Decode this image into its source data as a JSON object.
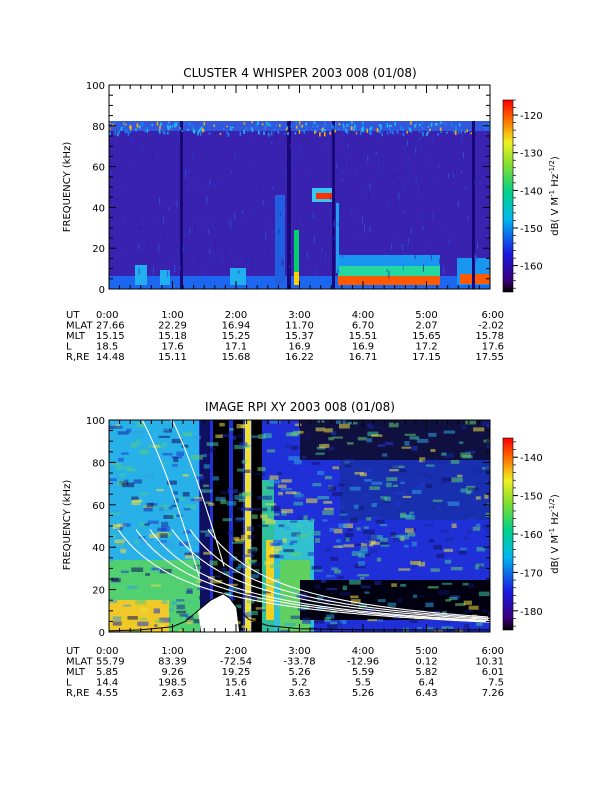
{
  "chart_data": [
    {
      "type": "heatmap",
      "title": "CLUSTER 4 WHISPER 2003 008 (01/08)",
      "ylabel": "FREQUENCY (kHz)",
      "ylim": [
        0,
        100
      ],
      "yticks": [
        0,
        20,
        40,
        60,
        80,
        100
      ],
      "data_top_khz": 80,
      "x_range_hours": [
        0,
        6
      ],
      "colorbar": {
        "label": "dB( V M⁻¹ Hz⁻¹ᐟ²)",
        "label_main": "dB( V M",
        "label_exp1": "-1",
        "label_mid": " Hz",
        "label_exp2": "-1/2",
        "label_end": ")",
        "range": [
          -167,
          -116
        ],
        "ticks": [
          -120,
          -130,
          -140,
          -150,
          -160
        ]
      },
      "ephemeris": {
        "row_labels": [
          "UT",
          "MLAT",
          "MLT",
          "L",
          "R,RE"
        ],
        "columns": [
          [
            "0:00",
            "27.66",
            "15.15",
            "18.5",
            "14.48"
          ],
          [
            "1:00",
            "22.29",
            "15.18",
            "17.6",
            "15.11"
          ],
          [
            "2:00",
            "16.94",
            "15.25",
            "17.1",
            "15.68"
          ],
          [
            "3:00",
            "11.70",
            "15.37",
            "16.9",
            "16.22"
          ],
          [
            "4:00",
            "6.70",
            "15.51",
            "16.9",
            "16.71"
          ],
          [
            "5:00",
            "2.07",
            "15.65",
            "17.2",
            "17.15"
          ],
          [
            "6:00",
            "-2.02",
            "15.78",
            "17.6",
            "17.55"
          ]
        ]
      },
      "features": [
        {
          "name": "low-frequency band",
          "t": [
            3.6,
            6.0
          ],
          "f": [
            2,
            8
          ]
        },
        {
          "name": "emission burst",
          "t": [
            3.2,
            3.6
          ],
          "f": [
            40,
            48
          ]
        }
      ]
    },
    {
      "type": "heatmap",
      "title": "IMAGE RPI XY 2003 008 (01/08)",
      "ylabel": "FREQUENCY (kHz)",
      "ylim": [
        0,
        100
      ],
      "yticks": [
        0,
        20,
        40,
        60,
        80,
        100
      ],
      "x_range_hours": [
        0,
        6
      ],
      "colorbar": {
        "label_main": "dB( V M",
        "label_exp1": "-1",
        "label_mid": " Hz",
        "label_exp2": "-1/2",
        "label_end": ")",
        "range": [
          -185,
          -135
        ],
        "ticks": [
          -140,
          -150,
          -160,
          -170,
          -180
        ]
      },
      "ephemeris": {
        "row_labels": [
          "UT",
          "MLAT",
          "MLT",
          "L",
          "R,RE"
        ],
        "columns": [
          [
            "0:00",
            "55.79",
            "5.85",
            "14.4",
            "4.55"
          ],
          [
            "1:00",
            "83.39",
            "9.26",
            "198.5",
            "2.63"
          ],
          [
            "2:00",
            "-72.54",
            "19.25",
            "15.6",
            "1.41"
          ],
          [
            "3:00",
            "-33.78",
            "5.26",
            "5.2",
            "3.63"
          ],
          [
            "4:00",
            "-12.96",
            "5.59",
            "5.5",
            "5.26"
          ],
          [
            "5:00",
            "0.12",
            "5.82",
            "6.4",
            "6.43"
          ],
          [
            "6:00",
            "10.31",
            "6.01",
            "7.5",
            "7.26"
          ]
        ]
      },
      "plasma_frequency_curve": {
        "t": [
          0.0,
          0.5,
          1.0,
          1.2,
          1.4,
          1.6,
          1.8,
          1.9,
          2.0,
          2.2,
          2.5,
          3.0,
          4.0,
          5.0,
          6.0
        ],
        "f": [
          0.5,
          1.0,
          2.5,
          5,
          10,
          15,
          18,
          16,
          12,
          6,
          3,
          1.5,
          1.0,
          1.0,
          1.0
        ]
      }
    }
  ]
}
